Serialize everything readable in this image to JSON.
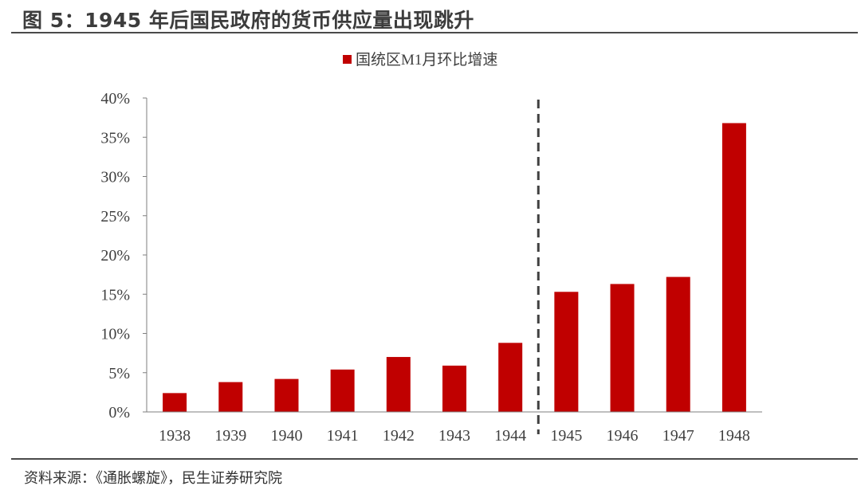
{
  "figure": {
    "title": "图 5：1945 年后国民政府的货币供应量出现跳升",
    "source": "资料来源：《通胀螺旋》，民生证券研究院"
  },
  "colors": {
    "bar": "#c00000",
    "axis": "#7f7f7f",
    "divider": "#404040",
    "text": "#404040"
  },
  "chart_data": {
    "type": "bar",
    "categories": [
      "1938",
      "1939",
      "1940",
      "1941",
      "1942",
      "1943",
      "1944",
      "1945",
      "1946",
      "1947",
      "1948"
    ],
    "series": [
      {
        "name": "国统区M1月环比增速",
        "values": [
          2.4,
          3.8,
          4.2,
          5.4,
          7.0,
          5.9,
          8.8,
          15.3,
          16.3,
          17.2,
          36.8
        ]
      }
    ],
    "yticks": [
      "0%",
      "5%",
      "10%",
      "15%",
      "20%",
      "25%",
      "30%",
      "35%",
      "40%"
    ],
    "ylim": [
      0,
      40
    ],
    "divider_between": [
      "1944",
      "1945"
    ],
    "legend": "top-center",
    "grid": false
  }
}
